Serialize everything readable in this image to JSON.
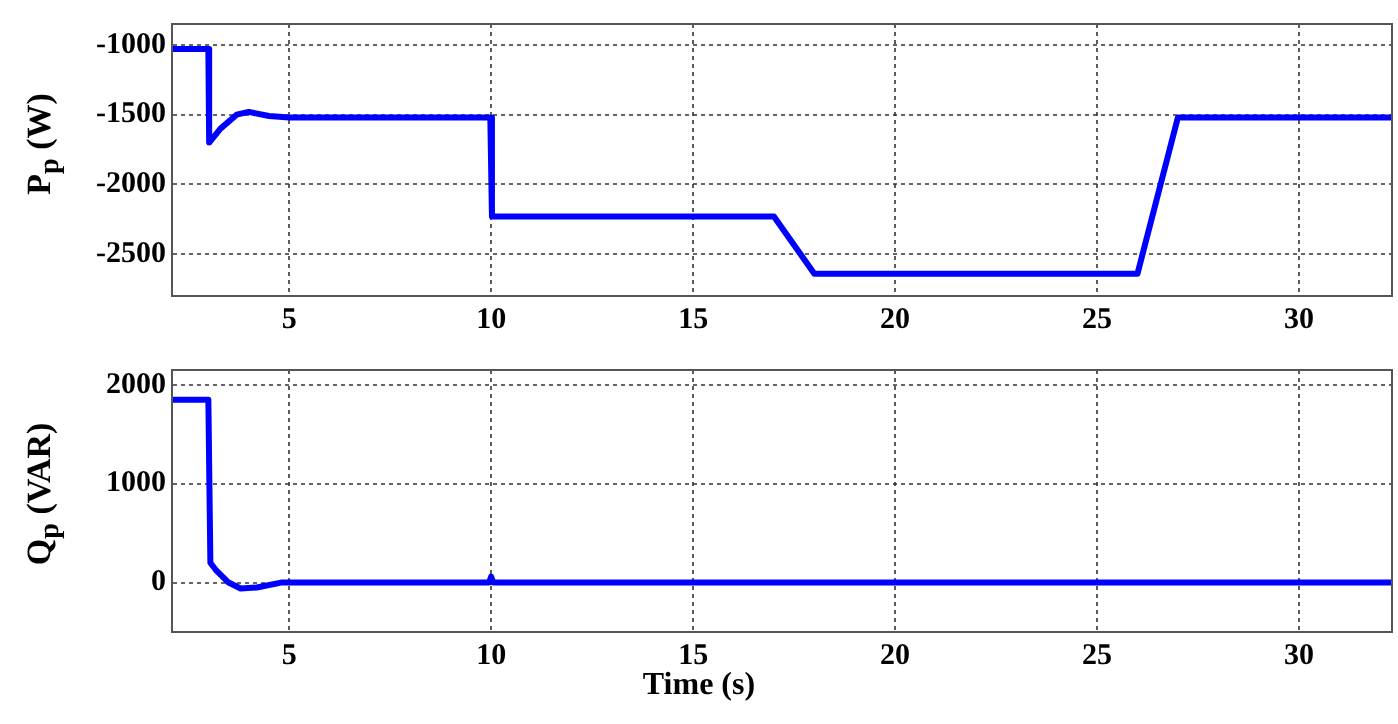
{
  "chart_data": [
    {
      "type": "line",
      "ylabel": "P$_{p}$ (W)",
      "xlim": [
        2.1,
        32.3
      ],
      "xticks": [
        5,
        10,
        15,
        20,
        25,
        30
      ],
      "ylim": [
        -2800,
        -850
      ],
      "yticks": [
        -2500,
        -2000,
        -1500,
        -1000
      ],
      "grid": true,
      "marker": "none",
      "line_style": "solid",
      "x": [
        2.1,
        3,
        3.02,
        3.3,
        3.7,
        4,
        4.5,
        5,
        9.98,
        10.02,
        17,
        18,
        26,
        27,
        32.3
      ],
      "series": [
        {
          "color": "#0000ff",
          "values": [
            -1030,
            -1030,
            -1700,
            -1600,
            -1500,
            -1480,
            -1510,
            -1520,
            -1520,
            -2230,
            -2230,
            -2640,
            -2640,
            -1520,
            -1520
          ]
        }
      ]
    },
    {
      "type": "line",
      "ylabel": "Q$_{p}$ (VAR)",
      "xlabel": "Time (s)",
      "xlim": [
        2.1,
        32.3
      ],
      "xticks": [
        5,
        10,
        15,
        20,
        25,
        30
      ],
      "ylim": [
        -500,
        2150
      ],
      "yticks": [
        0,
        1000,
        2000
      ],
      "grid": true,
      "marker": "none",
      "line_style": "solid",
      "x": [
        2.1,
        3,
        3.05,
        3.2,
        3.5,
        3.8,
        4.2,
        4.8,
        9.95,
        10,
        10.05,
        32.3
      ],
      "series": [
        {
          "color": "#0000ff",
          "values": [
            1850,
            1850,
            200,
            120,
            0,
            -60,
            -50,
            0,
            0,
            60,
            0,
            0
          ]
        }
      ]
    }
  ]
}
